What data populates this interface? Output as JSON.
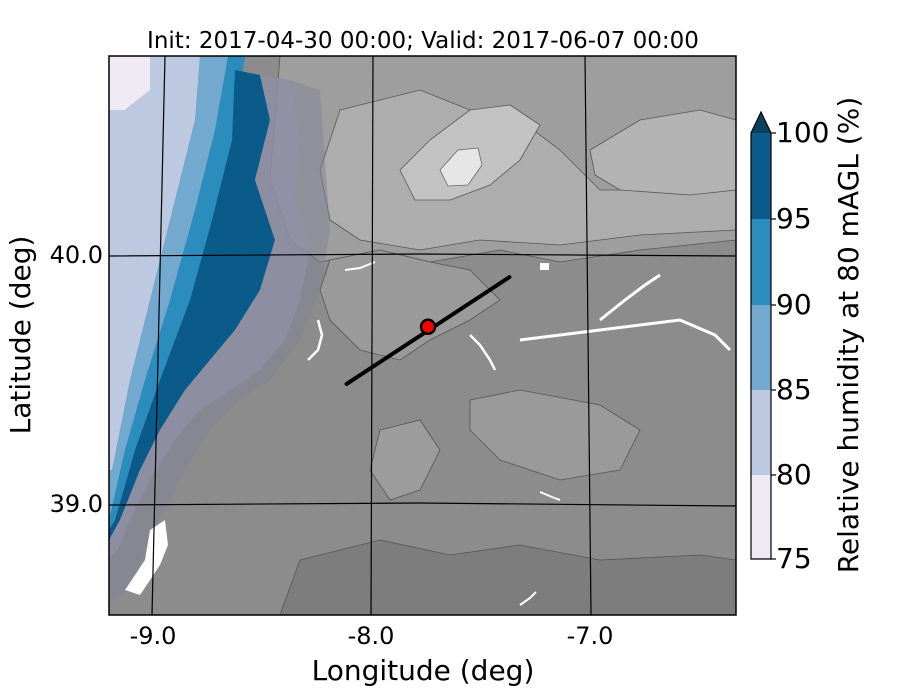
{
  "chart_data": {
    "type": "heatmap",
    "title": "Init: 2017-04-30 00:00; Valid: 2017-06-07 00:00",
    "xlabel": "Longitude (deg)",
    "ylabel": "Latitude (deg)",
    "xlim": [
      -9.2,
      -6.35
    ],
    "ylim": [
      38.55,
      40.8
    ],
    "x_ticks": [
      {
        "value": -9.0,
        "label": "-9.0"
      },
      {
        "value": -8.0,
        "label": "-8.0"
      },
      {
        "value": -7.0,
        "label": "-7.0"
      }
    ],
    "y_ticks": [
      {
        "value": 40.0,
        "label": "40.0"
      },
      {
        "value": 39.0,
        "label": "39.0"
      }
    ],
    "colorbar": {
      "label": "Relative humidity at 80 mAGL (%)",
      "extend": "max",
      "levels": [
        75,
        80,
        85,
        90,
        95,
        100
      ],
      "colors": [
        "#efe9f4",
        "#bdc9e1",
        "#74a9cf",
        "#2b8cbe",
        "#0b5b8a"
      ],
      "over_color": "#08405e",
      "tick_labels": [
        "75",
        "80",
        "85",
        "90",
        "95",
        "100"
      ]
    },
    "terrain_shading": "grayscale",
    "transect": {
      "start": [
        -8.12,
        39.48
      ],
      "end": [
        -7.38,
        39.91
      ]
    },
    "site_marker": {
      "lon": -7.75,
      "lat": 39.71,
      "color": "#ff0000"
    }
  }
}
